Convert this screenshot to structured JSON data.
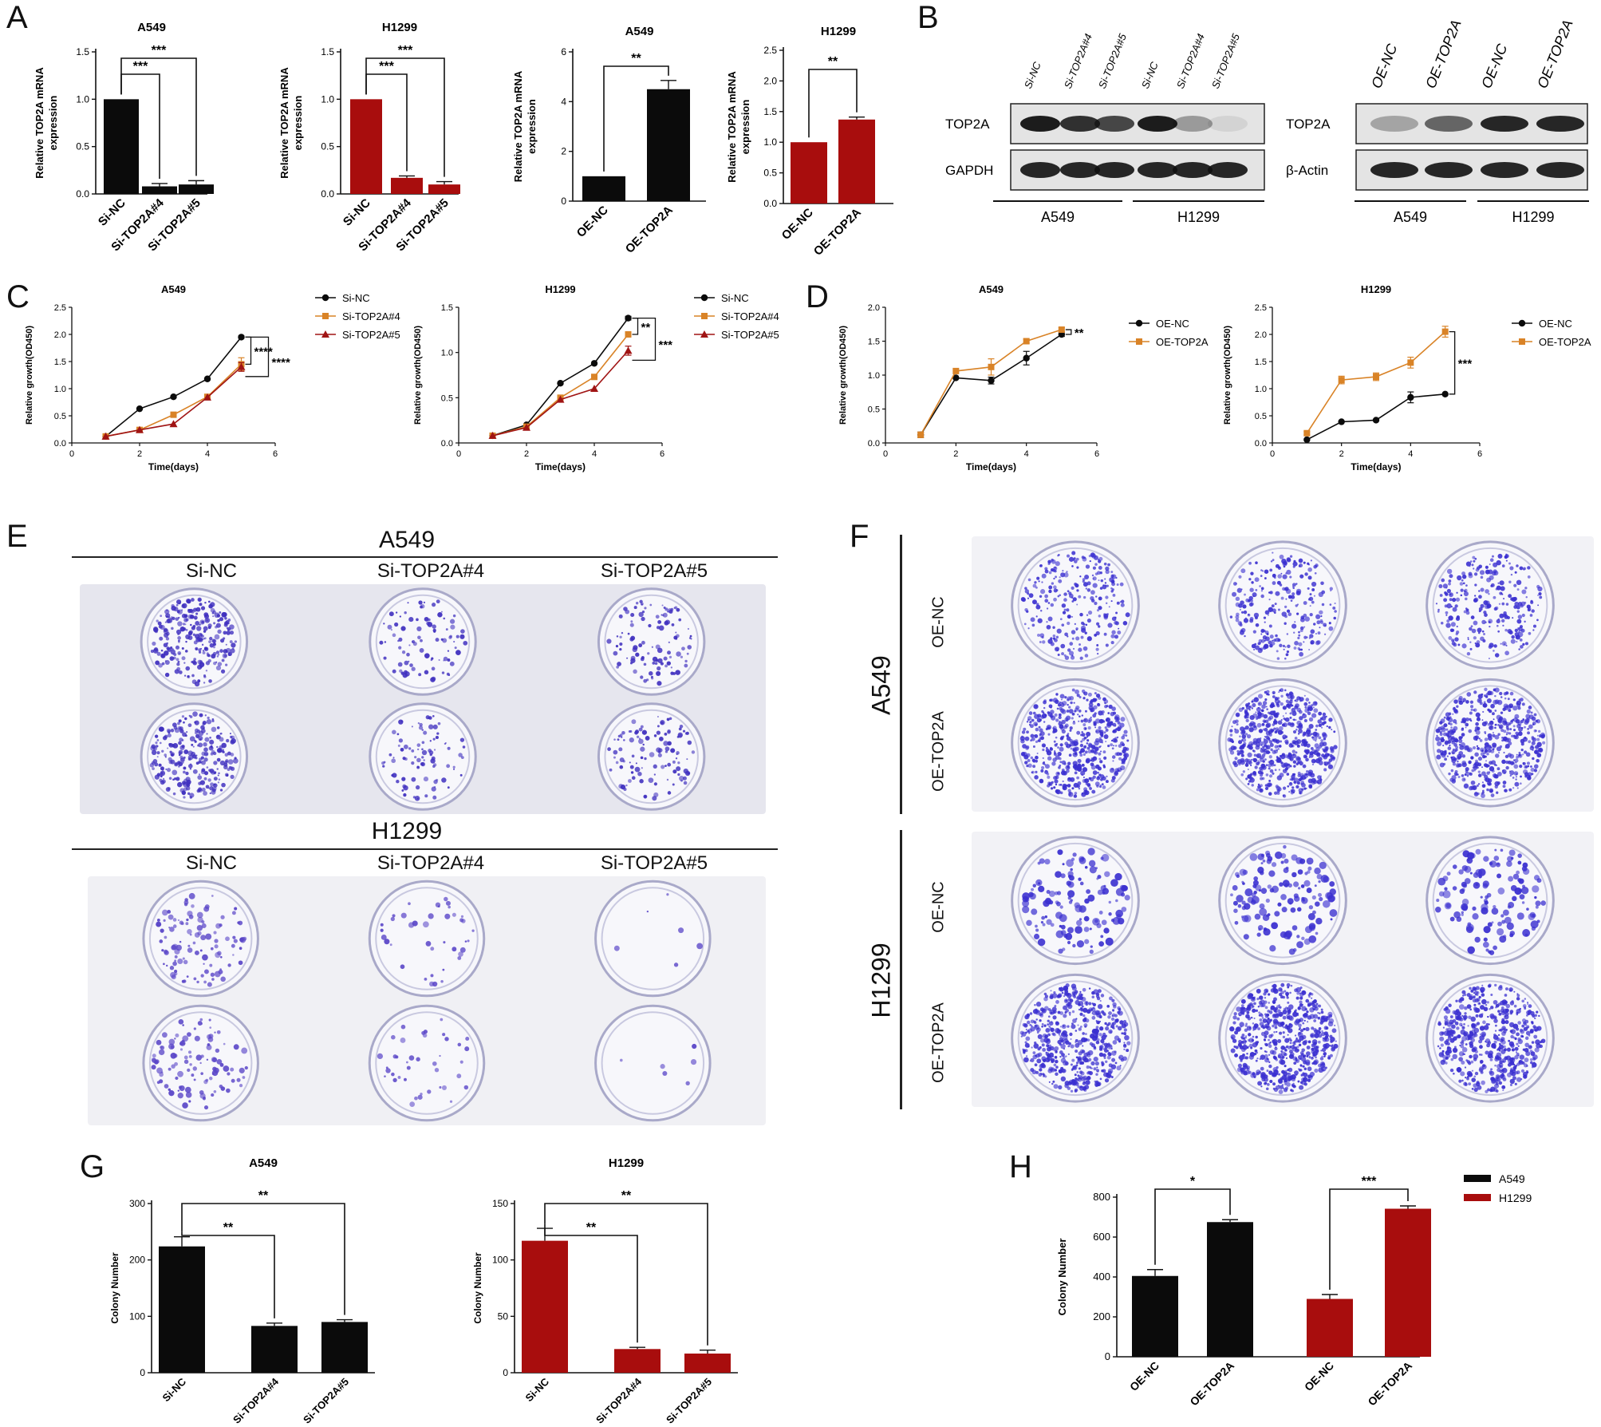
{
  "panels": {
    "A": "A",
    "B": "B",
    "C": "C",
    "D": "D",
    "E": "E",
    "F": "F",
    "G": "G",
    "H": "H"
  },
  "colors": {
    "black": "#0b0b0b",
    "red": "#a80d0d",
    "orange": "#d98327",
    "darkred": "#a01414",
    "stain": "#4a35c9"
  },
  "chart_data": [
    {
      "id": "A1",
      "type": "bar",
      "title": "A549",
      "ylabel": "Relative TOP2A mRNA expression",
      "categories": [
        "Si-NC",
        "Si-TOP2A#4",
        "Si-TOP2A#5"
      ],
      "values": [
        1.0,
        0.08,
        0.1
      ],
      "errors": [
        0,
        0.03,
        0.04
      ],
      "ylim": [
        0,
        1.5
      ],
      "yticks": [
        "0.0",
        "0.5",
        "1.0",
        "1.5"
      ],
      "colors": [
        "#0b0b0b",
        "#0b0b0b",
        "#0b0b0b"
      ],
      "sig": [
        {
          "label": "***",
          "from": 0,
          "to": 1,
          "level": 1
        },
        {
          "label": "***",
          "from": 0,
          "to": 2,
          "level": 2
        }
      ]
    },
    {
      "id": "A2",
      "type": "bar",
      "title": "H1299",
      "ylabel": "Relative TOP2A mRNA expression",
      "categories": [
        "Si-NC",
        "Si-TOP2A#4",
        "Si-TOP2A#5"
      ],
      "values": [
        1.0,
        0.17,
        0.1
      ],
      "errors": [
        0,
        0.02,
        0.03
      ],
      "ylim": [
        0,
        1.5
      ],
      "yticks": [
        "0.0",
        "0.5",
        "1.0",
        "1.5"
      ],
      "colors": [
        "#a80d0d",
        "#a80d0d",
        "#a80d0d"
      ],
      "sig": [
        {
          "label": "***",
          "from": 0,
          "to": 1,
          "level": 1
        },
        {
          "label": "***",
          "from": 0,
          "to": 2,
          "level": 2
        }
      ]
    },
    {
      "id": "A3",
      "type": "bar",
      "title": "A549",
      "ylabel": "Relative TOP2A mRNA expression",
      "categories": [
        "OE-NC",
        "OE-TOP2A"
      ],
      "values": [
        1.0,
        4.5
      ],
      "errors": [
        0,
        0.35
      ],
      "ylim": [
        0,
        6
      ],
      "yticks": [
        "0",
        "2",
        "4",
        "6"
      ],
      "colors": [
        "#0b0b0b",
        "#0b0b0b"
      ],
      "sig": [
        {
          "label": "**",
          "from": 0,
          "to": 1,
          "level": 1
        }
      ]
    },
    {
      "id": "A4",
      "type": "bar",
      "title": "H1299",
      "ylabel": "Relative TOP2A mRNA expression",
      "categories": [
        "OE-NC",
        "OE-TOP2A"
      ],
      "values": [
        1.0,
        1.37
      ],
      "errors": [
        0,
        0.04
      ],
      "ylim": [
        0,
        2.5
      ],
      "yticks": [
        "0.0",
        "0.5",
        "1.0",
        "1.5",
        "2.0",
        "2.5"
      ],
      "colors": [
        "#a80d0d",
        "#a80d0d"
      ],
      "sig": [
        {
          "label": "**",
          "from": 0,
          "to": 1,
          "level": 1
        }
      ]
    },
    {
      "id": "C1",
      "type": "line",
      "title": "A549",
      "xlabel": "Time(days)",
      "ylabel": "Relative growth(OD450)",
      "x": [
        1,
        2,
        3,
        4,
        5
      ],
      "xlim": [
        0,
        6
      ],
      "xticks": [
        "0",
        "2",
        "4",
        "6"
      ],
      "ylim": [
        0,
        2.5
      ],
      "yticks": [
        "0.0",
        "0.5",
        "1.0",
        "1.5",
        "2.0",
        "2.5"
      ],
      "series": [
        {
          "name": "Si-NC",
          "values": [
            0.12,
            0.63,
            0.85,
            1.18,
            1.95
          ],
          "errors": [
            0,
            0,
            0,
            0,
            0.02
          ],
          "color": "#0b0b0b",
          "marker": "circle"
        },
        {
          "name": "Si-TOP2A#4",
          "values": [
            0.12,
            0.24,
            0.52,
            0.85,
            1.45
          ],
          "errors": [
            0,
            0,
            0,
            0,
            0.12
          ],
          "color": "#d98327",
          "marker": "square"
        },
        {
          "name": "Si-TOP2A#5",
          "values": [
            0.12,
            0.24,
            0.35,
            0.84,
            1.4
          ],
          "errors": [
            0,
            0,
            0,
            0,
            0.08
          ],
          "color": "#a01414",
          "marker": "triangle"
        }
      ],
      "sig_labels": [
        "****",
        "****"
      ]
    },
    {
      "id": "C2",
      "type": "line",
      "title": "H1299",
      "xlabel": "Time(days)",
      "ylabel": "Relative growth(OD450)",
      "x": [
        1,
        2,
        3,
        4,
        5
      ],
      "xlim": [
        0,
        6
      ],
      "xticks": [
        "0",
        "2",
        "4",
        "6"
      ],
      "ylim": [
        0,
        1.5
      ],
      "yticks": [
        "0.0",
        "0.5",
        "1.0",
        "1.5"
      ],
      "series": [
        {
          "name": "Si-NC",
          "values": [
            0.08,
            0.2,
            0.66,
            0.88,
            1.38
          ],
          "errors": [
            0,
            0,
            0,
            0,
            0.02
          ],
          "color": "#0b0b0b",
          "marker": "circle"
        },
        {
          "name": "Si-TOP2A#4",
          "values": [
            0.08,
            0.18,
            0.5,
            0.73,
            1.2
          ],
          "errors": [
            0,
            0,
            0,
            0,
            0.03
          ],
          "color": "#d98327",
          "marker": "square"
        },
        {
          "name": "Si-TOP2A#5",
          "values": [
            0.08,
            0.17,
            0.48,
            0.6,
            1.02
          ],
          "errors": [
            0,
            0,
            0,
            0,
            0.05
          ],
          "color": "#a01414",
          "marker": "triangle"
        }
      ],
      "sig_labels": [
        "**",
        "***"
      ]
    },
    {
      "id": "D1",
      "type": "line",
      "title": "A549",
      "xlabel": "Time(days)",
      "ylabel": "Relative growth(OD450)",
      "x": [
        1,
        2,
        3,
        4,
        5
      ],
      "xlim": [
        0,
        6
      ],
      "xticks": [
        "0",
        "2",
        "4",
        "6"
      ],
      "ylim": [
        0,
        2.0
      ],
      "yticks": [
        "0.0",
        "0.5",
        "1.0",
        "1.5",
        "2.0"
      ],
      "series": [
        {
          "name": "OE-NC",
          "values": [
            0.12,
            0.96,
            0.92,
            1.25,
            1.6
          ],
          "errors": [
            0.04,
            0,
            0.05,
            0.1,
            0.03
          ],
          "color": "#0b0b0b",
          "marker": "circle"
        },
        {
          "name": "OE-TOP2A",
          "values": [
            0.12,
            1.06,
            1.12,
            1.5,
            1.67
          ],
          "errors": [
            0.04,
            0,
            0.12,
            0.03,
            0.03
          ],
          "color": "#d98327",
          "marker": "square"
        }
      ],
      "sig_labels": [
        "**"
      ]
    },
    {
      "id": "D2",
      "type": "line",
      "title": "H1299",
      "xlabel": "Time(days)",
      "ylabel": "Relative growth(OD450)",
      "x": [
        1,
        2,
        3,
        4,
        5
      ],
      "xlim": [
        0,
        6
      ],
      "xticks": [
        "0",
        "2",
        "4",
        "6"
      ],
      "ylim": [
        0,
        2.5
      ],
      "yticks": [
        "0.0",
        "0.5",
        "1.0",
        "1.5",
        "2.0",
        "2.5"
      ],
      "series": [
        {
          "name": "OE-NC",
          "values": [
            0.06,
            0.39,
            0.42,
            0.84,
            0.9
          ],
          "errors": [
            0,
            0,
            0,
            0.1,
            0
          ],
          "color": "#0b0b0b",
          "marker": "circle"
        },
        {
          "name": "OE-TOP2A",
          "values": [
            0.18,
            1.16,
            1.22,
            1.48,
            2.05
          ],
          "errors": [
            0.03,
            0.07,
            0.07,
            0.1,
            0.1
          ],
          "color": "#d98327",
          "marker": "square"
        }
      ],
      "sig_labels": [
        "***"
      ]
    },
    {
      "id": "G1",
      "type": "bar",
      "title": "A549",
      "ylabel": "Colony Number",
      "categories": [
        "Si-NC",
        "Si-TOP2A#4",
        "Si-TOP2A#5"
      ],
      "values": [
        224,
        83,
        90
      ],
      "errors": [
        17,
        5,
        4
      ],
      "ylim": [
        0,
        300
      ],
      "yticks": [
        "0",
        "100",
        "200",
        "300"
      ],
      "colors": [
        "#0b0b0b",
        "#0b0b0b",
        "#0b0b0b"
      ],
      "sig": [
        {
          "label": "**",
          "from": 0,
          "to": 1,
          "level": 1
        },
        {
          "label": "**",
          "from": 0,
          "to": 2,
          "level": 2
        }
      ]
    },
    {
      "id": "G2",
      "type": "bar",
      "title": "H1299",
      "ylabel": "Colony Number",
      "categories": [
        "Si-NC",
        "Si-TOP2A#4",
        "Si-TOP2A#5"
      ],
      "values": [
        117,
        21,
        17
      ],
      "errors": [
        11,
        1.5,
        3
      ],
      "ylim": [
        0,
        150
      ],
      "yticks": [
        "0",
        "50",
        "100",
        "150"
      ],
      "colors": [
        "#a80d0d",
        "#a80d0d",
        "#a80d0d"
      ],
      "sig": [
        {
          "label": "**",
          "from": 0,
          "to": 1,
          "level": 1
        },
        {
          "label": "**",
          "from": 0,
          "to": 2,
          "level": 2
        }
      ]
    },
    {
      "id": "H",
      "type": "bar",
      "title": "",
      "ylabel": "Colony Number",
      "categories": [
        "OE-NC",
        "OE-TOP2A",
        "OE-NC",
        "OE-TOP2A"
      ],
      "values": [
        405,
        675,
        290,
        742
      ],
      "errors": [
        32,
        12,
        22,
        14
      ],
      "ylim": [
        0,
        800
      ],
      "yticks": [
        "0",
        "200",
        "400",
        "600",
        "800"
      ],
      "colors": [
        "#0b0b0b",
        "#0b0b0b",
        "#a80d0d",
        "#a80d0d"
      ],
      "groups": [
        0,
        0,
        1,
        1
      ],
      "legend": [
        {
          "name": "A549",
          "color": "#0b0b0b"
        },
        {
          "name": "H1299",
          "color": "#a80d0d"
        }
      ],
      "sig": [
        {
          "label": "*",
          "from": 0,
          "to": 1,
          "level": 1
        },
        {
          "label": "***",
          "from": 2,
          "to": 3,
          "level": 1
        }
      ]
    }
  ],
  "blotB": {
    "left": {
      "lanes": [
        "Si-NC",
        "Si-TOP2A#4",
        "Si-TOP2A#5",
        "Si-NC",
        "Si-TOP2A#4",
        "Si-TOP2A#5"
      ],
      "rows": [
        "TOP2A",
        "GAPDH"
      ],
      "groups": [
        "A549",
        "H1299"
      ]
    },
    "right": {
      "lanes": [
        "OE-NC",
        "OE-TOP2A",
        "OE-NC",
        "OE-TOP2A"
      ],
      "rows": [
        "TOP2A",
        "β-Actin"
      ],
      "groups": [
        "A549",
        "H1299"
      ]
    }
  },
  "panelE": {
    "top": {
      "title": "A549",
      "cols": [
        "Si-NC",
        "Si-TOP2A#4",
        "Si-TOP2A#5"
      ]
    },
    "bottom": {
      "title": "H1299",
      "cols": [
        "Si-NC",
        "Si-TOP2A#4",
        "Si-TOP2A#5"
      ]
    }
  },
  "panelF": {
    "groups": [
      "A549",
      "H1299"
    ],
    "rows": [
      "OE-NC",
      "OE-TOP2A",
      "OE-NC",
      "OE-TOP2A"
    ]
  }
}
